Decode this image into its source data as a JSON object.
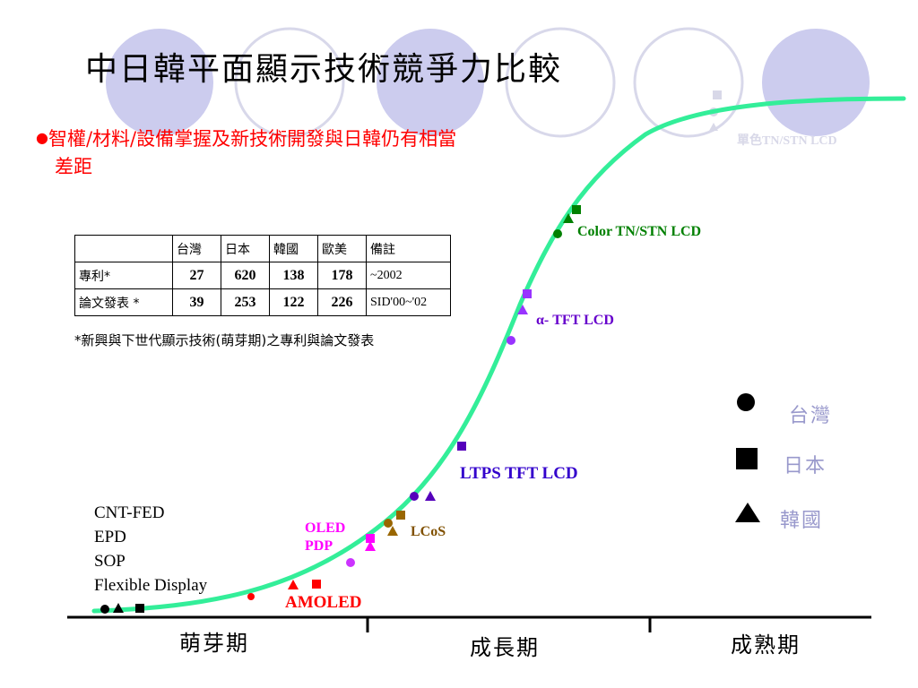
{
  "title": "中日韓平面顯示技術競爭力比較",
  "bullet": {
    "line1": "智權/材料/設備掌握及新技術開發與日韓仍有相當",
    "line2": "差距"
  },
  "table": {
    "headers": [
      "",
      "台灣",
      "日本",
      "韓國",
      "歐美",
      "備註"
    ],
    "rows": [
      {
        "label": "專利*",
        "taiwan": "27",
        "japan": "620",
        "korea": "138",
        "west": "178",
        "note": "~2002"
      },
      {
        "label": "論文發表 *",
        "taiwan": "39",
        "japan": "253",
        "korea": "122",
        "west": "226",
        "note": "SID'00~'02"
      }
    ]
  },
  "footnote": "*新興與下世代顯示技術(萌芽期)之專利與論文發表",
  "curve_labels": {
    "mono": "單色TN/STN LCD",
    "color_stn": "Color TN/STN LCD",
    "a_tft": "α- TFT LCD",
    "ltps": "LTPS TFT LCD",
    "lcos": "LCoS",
    "oled": "OLED",
    "pdp": "PDP",
    "amoled": "AMOLED"
  },
  "future_tech": [
    "CNT-FED",
    "EPD",
    "SOP",
    "Flexible Display"
  ],
  "legend": {
    "taiwan": "台灣",
    "japan": "日本",
    "korea": "韓國"
  },
  "phases": {
    "emerging": "萌芽期",
    "growth": "成長期",
    "mature": "成熟期"
  },
  "colors": {
    "curve": "#33ee99",
    "circles": "#ccccee",
    "bullet_red": "#ff0000",
    "green": "#008000",
    "purple": "#9933ff",
    "brown": "#996600",
    "magenta": "#ff00ff",
    "red": "#ff0000",
    "blue_purple": "#5500bb",
    "legend_text": "#9999cc"
  },
  "icons": {
    "taiwan": "circle",
    "japan": "square",
    "korea": "triangle"
  }
}
